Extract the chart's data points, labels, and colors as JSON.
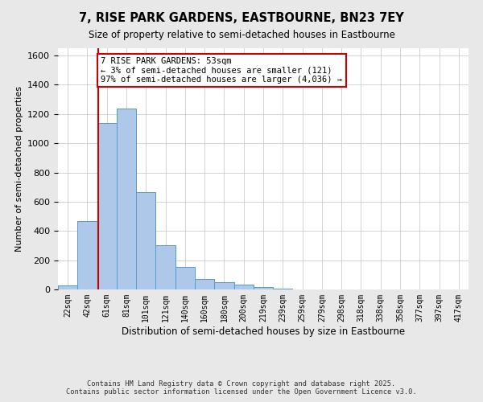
{
  "title": "7, RISE PARK GARDENS, EASTBOURNE, BN23 7EY",
  "subtitle": "Size of property relative to semi-detached houses in Eastbourne",
  "xlabel": "Distribution of semi-detached houses by size in Eastbourne",
  "ylabel": "Number of semi-detached properties",
  "bar_labels": [
    "22sqm",
    "42sqm",
    "61sqm",
    "81sqm",
    "101sqm",
    "121sqm",
    "140sqm",
    "160sqm",
    "180sqm",
    "200sqm",
    "219sqm",
    "239sqm",
    "259sqm",
    "279sqm",
    "298sqm",
    "318sqm",
    "338sqm",
    "358sqm",
    "377sqm",
    "397sqm",
    "417sqm"
  ],
  "bar_values": [
    25,
    470,
    1140,
    1235,
    665,
    300,
    155,
    70,
    48,
    32,
    18,
    5,
    2,
    1,
    0,
    0,
    0,
    0,
    0,
    0,
    0
  ],
  "bar_color": "#adc8e8",
  "bar_edge_color": "#5599cc",
  "ylim": [
    0,
    1650
  ],
  "yticks": [
    0,
    200,
    400,
    600,
    800,
    1000,
    1200,
    1400,
    1600
  ],
  "property_line_x": 1.55,
  "property_line_color": "#cc0000",
  "annotation_title": "7 RISE PARK GARDENS: 53sqm",
  "annotation_line1": "← 3% of semi-detached houses are smaller (121)",
  "annotation_line2": "97% of semi-detached houses are larger (4,036) →",
  "annotation_box_color": "#cc0000",
  "background_color": "#e8e8e8",
  "footnote1": "Contains HM Land Registry data © Crown copyright and database right 2025.",
  "footnote2": "Contains public sector information licensed under the Open Government Licence v3.0."
}
